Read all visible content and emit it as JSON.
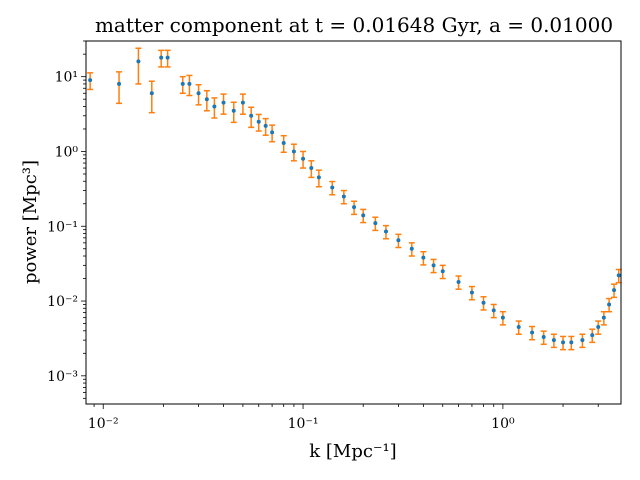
{
  "chart_data": {
    "type": "scatter",
    "title": "matter component at t = 0.01648 Gyr, a = 0.01000",
    "xlabel": "k [Mpc⁻¹]",
    "ylabel": "power [Mpc³]",
    "xscale": "log",
    "yscale": "log",
    "xlim": [
      0.0082,
      3.9
    ],
    "ylim": [
      0.00042,
      30
    ],
    "x_ticks": [
      {
        "value": 0.01,
        "label": "10⁻²"
      },
      {
        "value": 0.1,
        "label": "10⁻¹"
      },
      {
        "value": 1,
        "label": "10⁰"
      }
    ],
    "y_ticks": [
      {
        "value": 0.001,
        "label": "10⁻³"
      },
      {
        "value": 0.01,
        "label": "10⁻²"
      },
      {
        "value": 0.1,
        "label": "10⁻¹"
      },
      {
        "value": 1,
        "label": "10⁰"
      },
      {
        "value": 10,
        "label": "10¹"
      }
    ],
    "grid": false,
    "legend": "none",
    "colors": {
      "points": "#1f77b4",
      "errorbars": "#ff7f0e"
    },
    "series": [
      {
        "x": [
          0.0086,
          0.012,
          0.015,
          0.0175,
          0.0195,
          0.021,
          0.025,
          0.027,
          0.03,
          0.033,
          0.036,
          0.04,
          0.045,
          0.05,
          0.055,
          0.06,
          0.065,
          0.07,
          0.08,
          0.09,
          0.1,
          0.11,
          0.12,
          0.14,
          0.16,
          0.18,
          0.2,
          0.23,
          0.26,
          0.3,
          0.35,
          0.4,
          0.45,
          0.5,
          0.6,
          0.7,
          0.8,
          0.9,
          1.0,
          1.2,
          1.4,
          1.6,
          1.8,
          2.0,
          2.2,
          2.5,
          2.8,
          3.0,
          3.2,
          3.4,
          3.6,
          3.8
        ],
        "y": [
          9.0,
          8.0,
          16.0,
          6.0,
          18.0,
          18.0,
          8.0,
          8.0,
          6.0,
          5.0,
          4.0,
          4.5,
          3.5,
          4.5,
          3.0,
          2.5,
          2.2,
          1.8,
          1.3,
          1.0,
          0.8,
          0.6,
          0.45,
          0.33,
          0.25,
          0.18,
          0.14,
          0.11,
          0.085,
          0.065,
          0.05,
          0.038,
          0.03,
          0.025,
          0.018,
          0.013,
          0.0095,
          0.0075,
          0.006,
          0.0045,
          0.0038,
          0.0033,
          0.003,
          0.0028,
          0.0028,
          0.003,
          0.0035,
          0.0045,
          0.006,
          0.009,
          0.014,
          0.022
        ],
        "yerr_frac": [
          0.25,
          0.45,
          0.5,
          0.45,
          0.25,
          0.25,
          0.25,
          0.3,
          0.3,
          0.3,
          0.3,
          0.3,
          0.3,
          0.3,
          0.3,
          0.25,
          0.25,
          0.25,
          0.25,
          0.25,
          0.25,
          0.25,
          0.25,
          0.2,
          0.2,
          0.2,
          0.2,
          0.2,
          0.2,
          0.2,
          0.2,
          0.2,
          0.2,
          0.2,
          0.2,
          0.2,
          0.2,
          0.2,
          0.2,
          0.2,
          0.2,
          0.2,
          0.2,
          0.2,
          0.2,
          0.2,
          0.2,
          0.2,
          0.2,
          0.2,
          0.2,
          0.2
        ]
      }
    ]
  }
}
